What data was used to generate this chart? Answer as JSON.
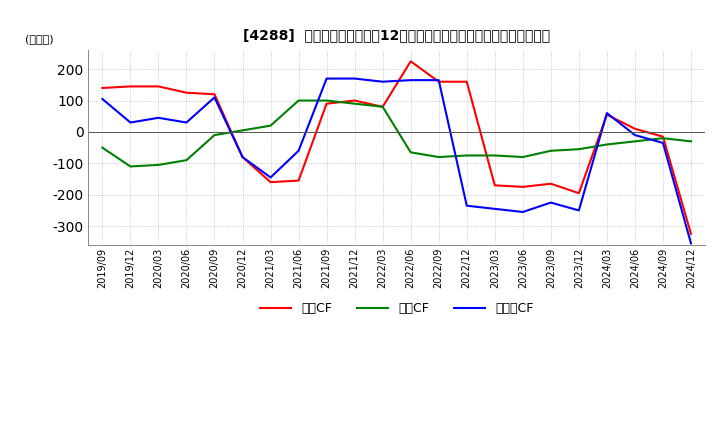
{
  "title": "[4288]  キャッシュフローの12か月移動合計の対前年同期増減額の推移",
  "ylabel": "(百万円)",
  "ylim": [
    -360,
    260
  ],
  "yticks": [
    -300,
    -200,
    -100,
    0,
    100,
    200
  ],
  "dates": [
    "2019/09",
    "2019/12",
    "2020/03",
    "2020/06",
    "2020/09",
    "2020/12",
    "2021/03",
    "2021/06",
    "2021/09",
    "2021/12",
    "2022/03",
    "2022/06",
    "2022/09",
    "2022/12",
    "2023/03",
    "2023/06",
    "2023/09",
    "2023/12",
    "2024/03",
    "2024/06",
    "2024/09",
    "2024/12"
  ],
  "operating_cf": [
    140,
    145,
    145,
    125,
    120,
    -80,
    -160,
    -155,
    90,
    100,
    80,
    225,
    160,
    160,
    -170,
    -175,
    -165,
    -195,
    55,
    10,
    -15,
    -325
  ],
  "investing_cf": [
    -50,
    -110,
    -105,
    -90,
    -10,
    5,
    20,
    100,
    100,
    90,
    80,
    -65,
    -80,
    -75,
    -75,
    -80,
    -60,
    -55,
    -40,
    -30,
    -20,
    -30
  ],
  "free_cf": [
    105,
    30,
    45,
    30,
    110,
    -80,
    -145,
    -60,
    170,
    170,
    160,
    165,
    165,
    -235,
    -245,
    -255,
    -225,
    -250,
    60,
    -10,
    -35,
    -355
  ],
  "operating_color": "#ff0000",
  "investing_color": "#008000",
  "free_color": "#0000ff",
  "background_color": "#ffffff",
  "grid_color": "#aaaaaa",
  "legend_labels": [
    "営業CF",
    "投資CF",
    "フリーCF"
  ]
}
